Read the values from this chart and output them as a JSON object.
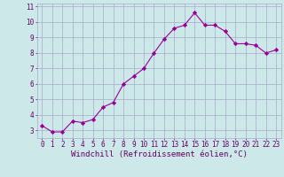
{
  "x": [
    0,
    1,
    2,
    3,
    4,
    5,
    6,
    7,
    8,
    9,
    10,
    11,
    12,
    13,
    14,
    15,
    16,
    17,
    18,
    19,
    20,
    21,
    22,
    23
  ],
  "y": [
    3.3,
    2.9,
    2.9,
    3.6,
    3.5,
    3.7,
    4.5,
    4.8,
    6.0,
    6.5,
    7.0,
    8.0,
    8.9,
    9.6,
    9.8,
    10.6,
    9.8,
    9.8,
    9.4,
    8.6,
    8.6,
    8.5,
    8.0,
    8.2
  ],
  "xlabel": "Windchill (Refroidissement éolien,°C)",
  "xlim": [
    -0.5,
    23.5
  ],
  "ylim": [
    2.5,
    11.2
  ],
  "yticks": [
    3,
    4,
    5,
    6,
    7,
    8,
    9,
    10,
    11
  ],
  "xticks": [
    0,
    1,
    2,
    3,
    4,
    5,
    6,
    7,
    8,
    9,
    10,
    11,
    12,
    13,
    14,
    15,
    16,
    17,
    18,
    19,
    20,
    21,
    22,
    23
  ],
  "line_color": "#990099",
  "marker": "D",
  "marker_size": 2.2,
  "bg_color": "#cce8e8",
  "grid_color": "#aaaacc",
  "tick_label_color": "#660066",
  "xlabel_color": "#660066",
  "tick_fontsize": 5.5,
  "xlabel_fontsize": 6.5
}
